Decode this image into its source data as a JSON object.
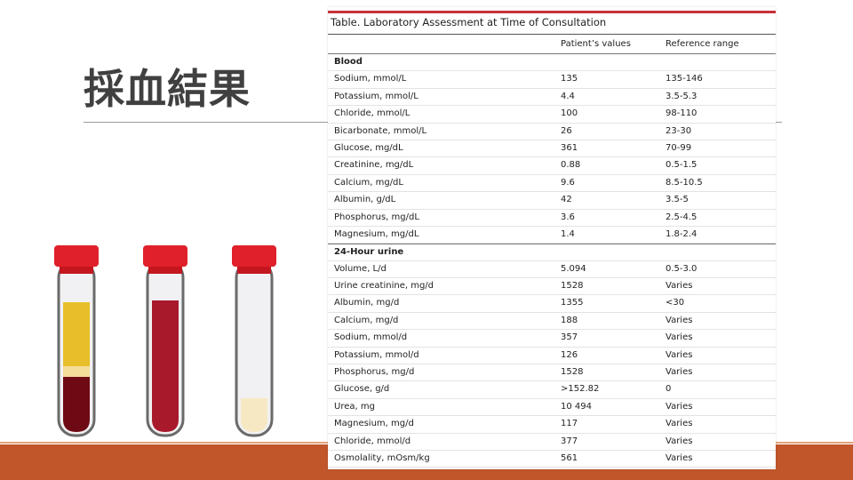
{
  "slide": {
    "title": "採血結果"
  },
  "colors": {
    "accent": "#c0562a",
    "table_rule": "#c8323a",
    "tube_cap": "#e0202a",
    "serum_yellow": "#e8bf2a",
    "clot_dark": "#6e0a14",
    "whole_blood": "#a8192c",
    "urine_pale": "#f6e8c2"
  },
  "illustration": {
    "icons": [
      "blood-tube-serum-icon",
      "blood-tube-whole-icon",
      "blood-tube-empty-icon"
    ]
  },
  "table": {
    "caption": "Table. Laboratory Assessment at Time of Consultation",
    "headers": [
      "",
      "Patient’s values",
      "Reference range"
    ],
    "rows": [
      {
        "section": "Blood"
      },
      {
        "test": "Sodium, mmol/L",
        "value": "135",
        "ref": "135-146"
      },
      {
        "test": "Potassium, mmol/L",
        "value": "4.4",
        "ref": "3.5-5.3"
      },
      {
        "test": "Chloride, mmol/L",
        "value": "100",
        "ref": "98-110"
      },
      {
        "test": "Bicarbonate, mmol/L",
        "value": "26",
        "ref": "23-30"
      },
      {
        "test": "Glucose, mg/dL",
        "value": "361",
        "ref": "70-99"
      },
      {
        "test": "Creatinine, mg/dL",
        "value": "0.88",
        "ref": "0.5-1.5"
      },
      {
        "test": "Calcium, mg/dL",
        "value": "9.6",
        "ref": "8.5-10.5"
      },
      {
        "test": "Albumin, g/dL",
        "value": "42",
        "ref": "3.5-5"
      },
      {
        "test": "Phosphorus, mg/dL",
        "value": "3.6",
        "ref": "2.5-4.5"
      },
      {
        "test": "Magnesium, mg/dL",
        "value": "1.4",
        "ref": "1.8-2.4"
      },
      {
        "section": "24-Hour urine"
      },
      {
        "test": "Volume, L/d",
        "value": "5.094",
        "ref": "0.5-3.0"
      },
      {
        "test": "Urine creatinine, mg/d",
        "value": "1528",
        "ref": "Varies"
      },
      {
        "test": "Albumin, mg/d",
        "value": "1355",
        "ref": "<30"
      },
      {
        "test": "Calcium, mg/d",
        "value": "188",
        "ref": "Varies"
      },
      {
        "test": "Sodium, mmol/d",
        "value": "357",
        "ref": "Varies"
      },
      {
        "test": "Potassium, mmol/d",
        "value": "126",
        "ref": "Varies"
      },
      {
        "test": "Phosphorus, mg/d",
        "value": "1528",
        "ref": "Varies"
      },
      {
        "test": "Glucose, g/d",
        "value": ">152.82",
        "ref": "0"
      },
      {
        "test": "Urea, mg",
        "value": "10 494",
        "ref": "Varies"
      },
      {
        "test": "Magnesium, mg/d",
        "value": "117",
        "ref": "Varies"
      },
      {
        "test": "Chloride, mmol/d",
        "value": "377",
        "ref": "Varies"
      },
      {
        "test": "Osmolality, mOsm/kg",
        "value": "561",
        "ref": "Varies"
      }
    ]
  }
}
